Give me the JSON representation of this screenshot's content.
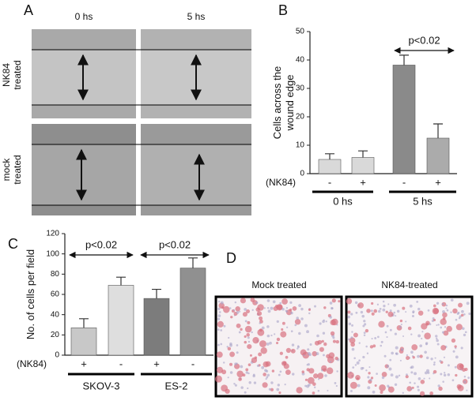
{
  "panel_labels": [
    "A",
    "B",
    "C",
    "D"
  ],
  "panel_a": {
    "columns": [
      "0 hs",
      "5 hs"
    ],
    "rows": [
      [
        "NK84",
        "treated"
      ],
      [
        "mock",
        "treated"
      ]
    ]
  },
  "chart_data": [
    {
      "type": "bar",
      "ylabel": [
        "Cells across the",
        "wound edge"
      ],
      "row_label": "(NK84)",
      "categories": [
        "-",
        "+",
        "-",
        "+"
      ],
      "groups": [
        "0 hs",
        "5 hs"
      ],
      "values": [
        5,
        5.7,
        38.2,
        12.5
      ],
      "errors": [
        2,
        2.3,
        3.5,
        5
      ],
      "colors": [
        "#d9d9d9",
        "#d9d9d9",
        "#8a8a8a",
        "#ababab"
      ],
      "ylim": [
        0,
        50
      ],
      "yticks": [
        0,
        10,
        20,
        30,
        40,
        50
      ],
      "annotations": [
        "p<0.02"
      ]
    },
    {
      "type": "bar",
      "ylabel": [
        "No. of cells per field"
      ],
      "row_label": "(NK84)",
      "categories": [
        "+",
        "-",
        "+",
        "-"
      ],
      "groups": [
        "SKOV-3",
        "ES-2"
      ],
      "values": [
        27,
        69,
        56,
        86
      ],
      "errors": [
        9,
        8,
        9,
        10
      ],
      "colors": [
        "#c8c8c8",
        "#dedede",
        "#7c7c7c",
        "#909090"
      ],
      "ylim": [
        0,
        120
      ],
      "yticks": [
        0,
        20,
        40,
        60,
        80,
        100,
        120
      ],
      "annotations": [
        "p<0.02",
        "p<0.02"
      ]
    }
  ],
  "panel_d": {
    "labels": [
      "Mock treated",
      "NK84-treated"
    ]
  }
}
